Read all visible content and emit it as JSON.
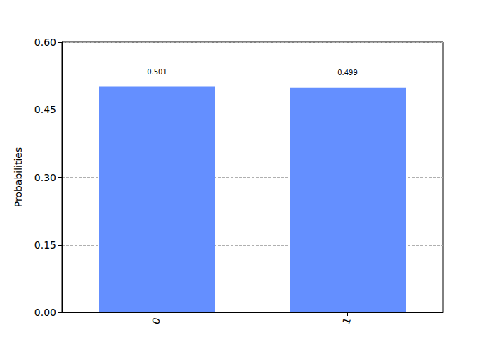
{
  "chart_data": {
    "type": "bar",
    "y_label": "Probabilities",
    "categories": [
      "0",
      "1"
    ],
    "values": [
      0.501,
      0.499
    ],
    "color": "#648fff",
    "ylim": [
      0,
      0.6
    ],
    "yticks": [
      {
        "value": 0,
        "label": "0.00"
      },
      0.15,
      {
        "value": 0.3,
        "label": "0.30"
      },
      0.45,
      {
        "value": 0.6,
        "label": "0.60"
      }
    ],
    "grid": true,
    "data_labels": true
  }
}
